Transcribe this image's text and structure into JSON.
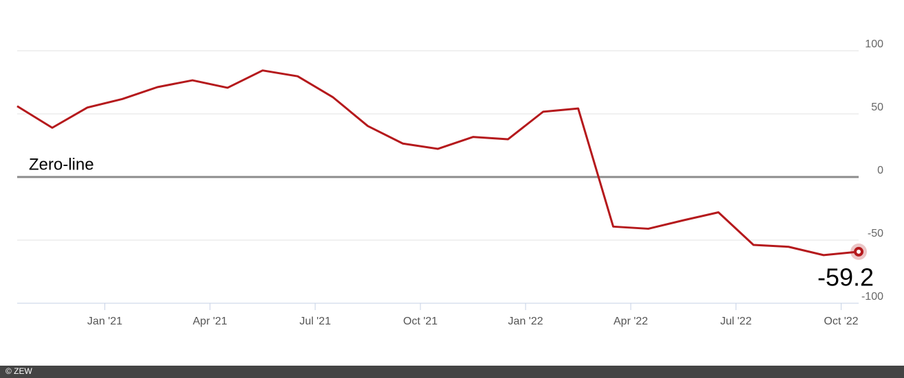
{
  "chart_data": {
    "type": "line",
    "zero_line_label": "Zero-line",
    "source": "© ZEW",
    "x": [
      "2020-10",
      "2020-11",
      "2020-12",
      "2021-01",
      "2021-02",
      "2021-03",
      "2021-04",
      "2021-05",
      "2021-06",
      "2021-07",
      "2021-08",
      "2021-09",
      "2021-10",
      "2021-11",
      "2021-12",
      "2022-01",
      "2022-02",
      "2022-03",
      "2022-04",
      "2022-05",
      "2022-06",
      "2022-07",
      "2022-08",
      "2022-09",
      "2022-10"
    ],
    "series": [
      {
        "color": "#b5191c",
        "values": [
          56.1,
          39.0,
          55.0,
          61.8,
          71.2,
          76.6,
          70.7,
          84.4,
          79.8,
          63.3,
          40.4,
          26.5,
          22.3,
          31.7,
          29.9,
          51.7,
          54.3,
          -39.3,
          -41.0,
          -34.3,
          -28.0,
          -53.8,
          -55.3,
          -61.9,
          -59.2
        ]
      }
    ],
    "xlim": [
      "2020-10",
      "2022-10"
    ],
    "xticks": [
      {
        "value": "2021-01",
        "label": "Jan '21"
      },
      {
        "value": "2021-04",
        "label": "Apr '21"
      },
      {
        "value": "2021-07",
        "label": "Jul '21"
      },
      {
        "value": "2021-10",
        "label": "Oct '21"
      },
      {
        "value": "2022-01",
        "label": "Jan '22"
      },
      {
        "value": "2022-04",
        "label": "Apr '22"
      },
      {
        "value": "2022-07",
        "label": "Jul '22"
      },
      {
        "value": "2022-10",
        "label": "Oct '22"
      }
    ],
    "ylim": [
      -100,
      100
    ],
    "yticks": [
      -100,
      -50,
      0,
      50,
      100
    ],
    "grid": true
  }
}
